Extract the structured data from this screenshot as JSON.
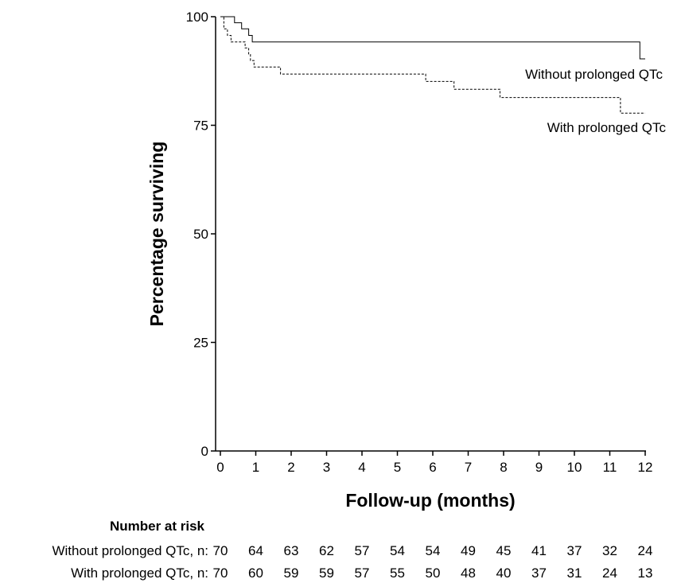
{
  "chart_data": {
    "type": "line",
    "subtype": "kaplan-meier step",
    "xlabel": "Follow-up (months)",
    "ylabel": "Percentage surviving",
    "xlim": [
      0,
      12
    ],
    "ylim": [
      0,
      100
    ],
    "xticks": [
      0,
      1,
      2,
      3,
      4,
      5,
      6,
      7,
      8,
      9,
      10,
      11,
      12
    ],
    "yticks": [
      0,
      25,
      50,
      75,
      100
    ],
    "grid": false,
    "legend": "none (curves labeled directly)",
    "series": [
      {
        "name": "Without prolonged QTc",
        "line_style": "solid",
        "steps": [
          [
            0,
            100
          ],
          [
            0.4,
            98.6
          ],
          [
            0.6,
            97.2
          ],
          [
            0.8,
            95.7
          ],
          [
            0.9,
            94.2
          ],
          [
            11.85,
            94.2
          ],
          [
            11.85,
            90.3
          ],
          [
            12,
            90.3
          ]
        ]
      },
      {
        "name": "With prolonged QTc",
        "line_style": "dashed",
        "steps": [
          [
            0,
            100
          ],
          [
            0.1,
            97.2
          ],
          [
            0.2,
            95.7
          ],
          [
            0.3,
            94.2
          ],
          [
            0.7,
            92.8
          ],
          [
            0.8,
            91.3
          ],
          [
            0.85,
            89.9
          ],
          [
            0.95,
            88.4
          ],
          [
            1.7,
            86.8
          ],
          [
            5.8,
            85.1
          ],
          [
            6.6,
            83.3
          ],
          [
            7.9,
            81.4
          ],
          [
            11.3,
            77.8
          ],
          [
            12,
            77.8
          ]
        ]
      }
    ]
  },
  "risk_table": {
    "title": "Number at risk",
    "rows": [
      {
        "label": "Without prolonged QTc, n:",
        "values": [
          "70",
          "64",
          "63",
          "62",
          "57",
          "54",
          "54",
          "49",
          "45",
          "41",
          "37",
          "32",
          "24"
        ]
      },
      {
        "label": "With prolonged QTc, n:",
        "values": [
          "70",
          "60",
          "59",
          "59",
          "57",
          "55",
          "50",
          "48",
          "40",
          "37",
          "31",
          "24",
          "13"
        ]
      }
    ]
  }
}
